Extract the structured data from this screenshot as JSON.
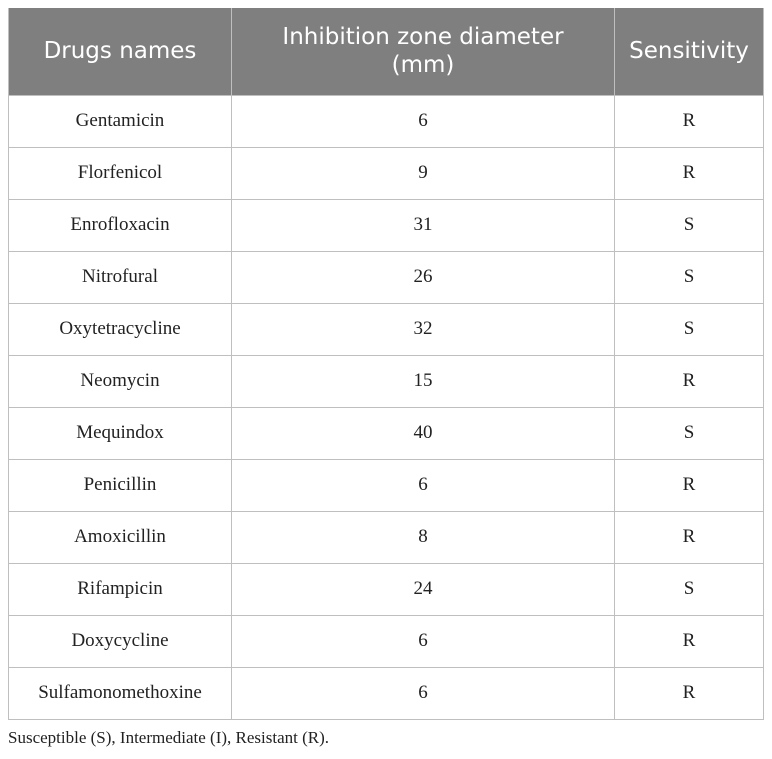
{
  "table": {
    "headers": [
      "Drugs names",
      "Inhibition zone diameter\n(mm)",
      "Sensitivity"
    ],
    "rows": [
      [
        "Gentamicin",
        "6",
        "R"
      ],
      [
        "Florfenicol",
        "9",
        "R"
      ],
      [
        "Enrofloxacin",
        "31",
        "S"
      ],
      [
        "Nitrofural",
        "26",
        "S"
      ],
      [
        "Oxytetracycline",
        "32",
        "S"
      ],
      [
        "Neomycin",
        "15",
        "R"
      ],
      [
        "Mequindox",
        "40",
        "S"
      ],
      [
        "Penicillin",
        "6",
        "R"
      ],
      [
        "Amoxicillin",
        "8",
        "R"
      ],
      [
        "Rifampicin",
        "24",
        "S"
      ],
      [
        "Doxycycline",
        "6",
        "R"
      ],
      [
        "Sulfamonomethoxine",
        "6",
        "R"
      ]
    ]
  },
  "footnote": "Susceptible (S), Intermediate (I), Resistant (R).",
  "colors": {
    "header_bg": "#7f7f7f",
    "header_text": "#ffffff",
    "border": "#bfbfbf"
  }
}
